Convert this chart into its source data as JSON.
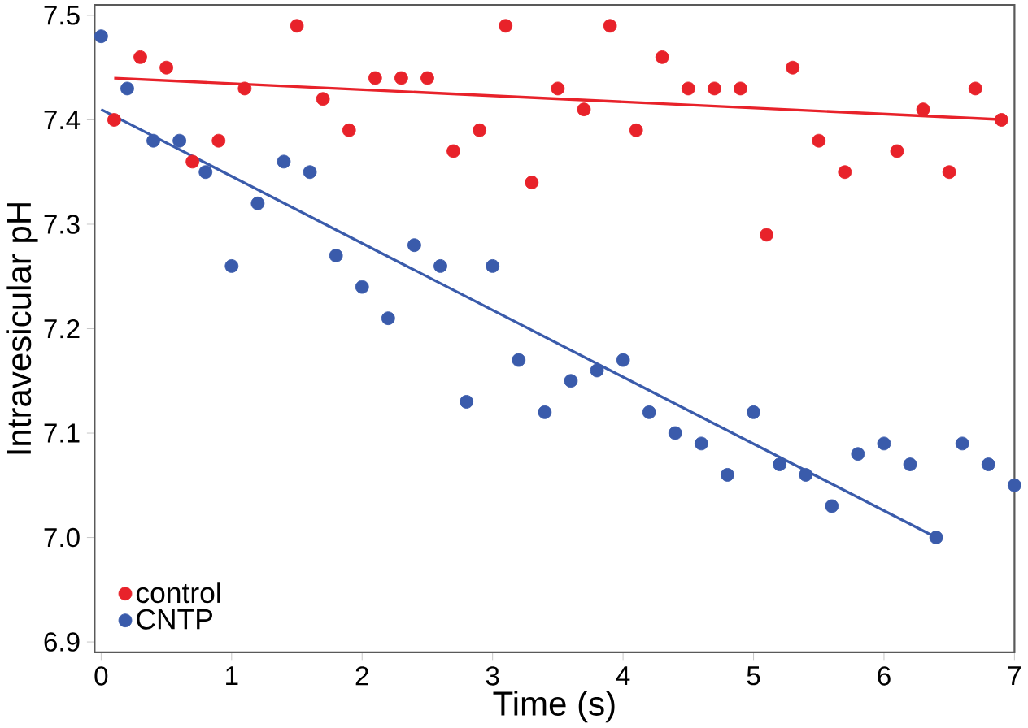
{
  "chart_data": {
    "type": "scatter",
    "xlabel": "Time (s)",
    "ylabel": "Intravesicular pH",
    "xlim": [
      -0.05,
      7.0
    ],
    "ylim": [
      6.89,
      7.51
    ],
    "xticks": [
      0,
      1,
      2,
      3,
      4,
      5,
      6,
      7
    ],
    "yticks": [
      6.9,
      {
        "value": 7.0,
        "label": "7.0"
      },
      7.1,
      7.2,
      7.3,
      7.4,
      7.5
    ],
    "legend": "bottom left",
    "grid": false,
    "marker": "circle",
    "series": [
      {
        "name": "control",
        "color": "#e8222a",
        "x": [
          0.1,
          0.3,
          0.5,
          0.7,
          0.9,
          1.1,
          1.5,
          1.7,
          1.9,
          2.1,
          2.3,
          2.5,
          2.7,
          2.9,
          3.1,
          3.3,
          3.5,
          3.7,
          3.9,
          4.1,
          4.3,
          4.5,
          4.7,
          4.9,
          5.1,
          5.3,
          5.5,
          5.7,
          6.1,
          6.3,
          6.5,
          6.7,
          6.9
        ],
        "values": [
          7.4,
          7.46,
          7.45,
          7.36,
          7.38,
          7.43,
          7.49,
          7.42,
          7.39,
          7.44,
          7.44,
          7.44,
          7.37,
          7.39,
          7.49,
          7.34,
          7.43,
          7.41,
          7.49,
          7.39,
          7.46,
          7.43,
          7.43,
          7.43,
          7.29,
          7.45,
          7.38,
          7.35,
          7.37,
          7.41,
          7.35,
          7.43,
          7.4
        ]
      },
      {
        "name": "CNTP",
        "color": "#3a5bab",
        "x": [
          0,
          0.2,
          0.4,
          0.6,
          0.8,
          1.0,
          1.2,
          1.4,
          1.6,
          1.8,
          2.0,
          2.2,
          2.4,
          2.6,
          2.8,
          3.0,
          3.2,
          3.4,
          3.6,
          3.8,
          4.0,
          4.2,
          4.4,
          4.6,
          4.8,
          5.0,
          5.2,
          5.4,
          5.6,
          5.8,
          6.0,
          6.2,
          6.4,
          6.6,
          6.8,
          7.0
        ],
        "values": [
          7.48,
          7.43,
          7.38,
          7.38,
          7.35,
          7.26,
          7.32,
          7.36,
          7.35,
          7.27,
          7.24,
          7.21,
          7.28,
          7.26,
          7.13,
          7.26,
          7.17,
          7.12,
          7.15,
          7.16,
          7.17,
          7.12,
          7.1,
          7.09,
          7.06,
          7.12,
          7.07,
          7.06,
          7.03,
          7.08,
          7.09,
          7.07,
          7.0,
          7.09,
          7.07,
          7.05
        ]
      },
      {
        "type": "line",
        "marker": "none",
        "color": "#e8222a",
        "x": [
          0.1,
          6.95
        ],
        "values": [
          7.44,
          7.4
        ]
      },
      {
        "type": "line",
        "marker": "none",
        "color": "#3a5bab",
        "x": [
          0.0,
          6.4
        ],
        "values": [
          7.41,
          7.0
        ]
      }
    ]
  }
}
